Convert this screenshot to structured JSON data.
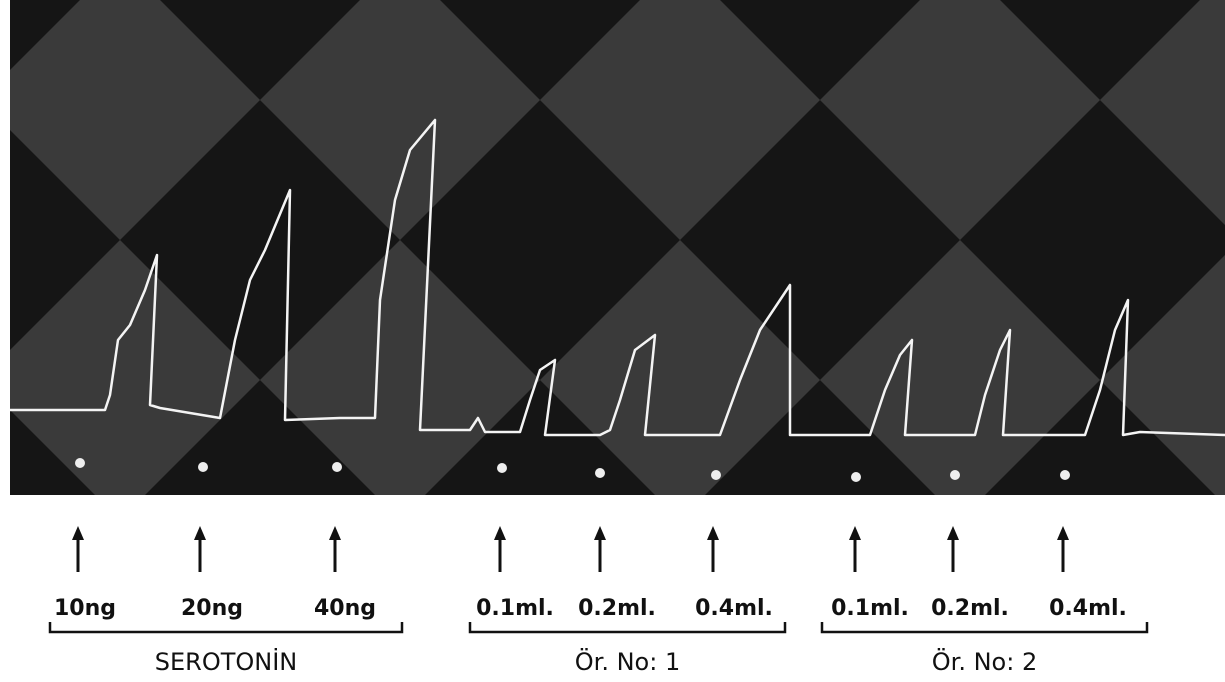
{
  "groups": [
    {
      "label": "SEROTONİN",
      "doses": [
        "10ng",
        "20ng",
        "40ng"
      ]
    },
    {
      "label": "Ör. No: 1",
      "doses": [
        "0.1ml.",
        "0.2ml.",
        "0.4ml."
      ]
    },
    {
      "label": "Ör. No: 2",
      "doses": [
        "0.1ml.",
        "0.2ml.",
        "0.4ml."
      ]
    }
  ]
}
